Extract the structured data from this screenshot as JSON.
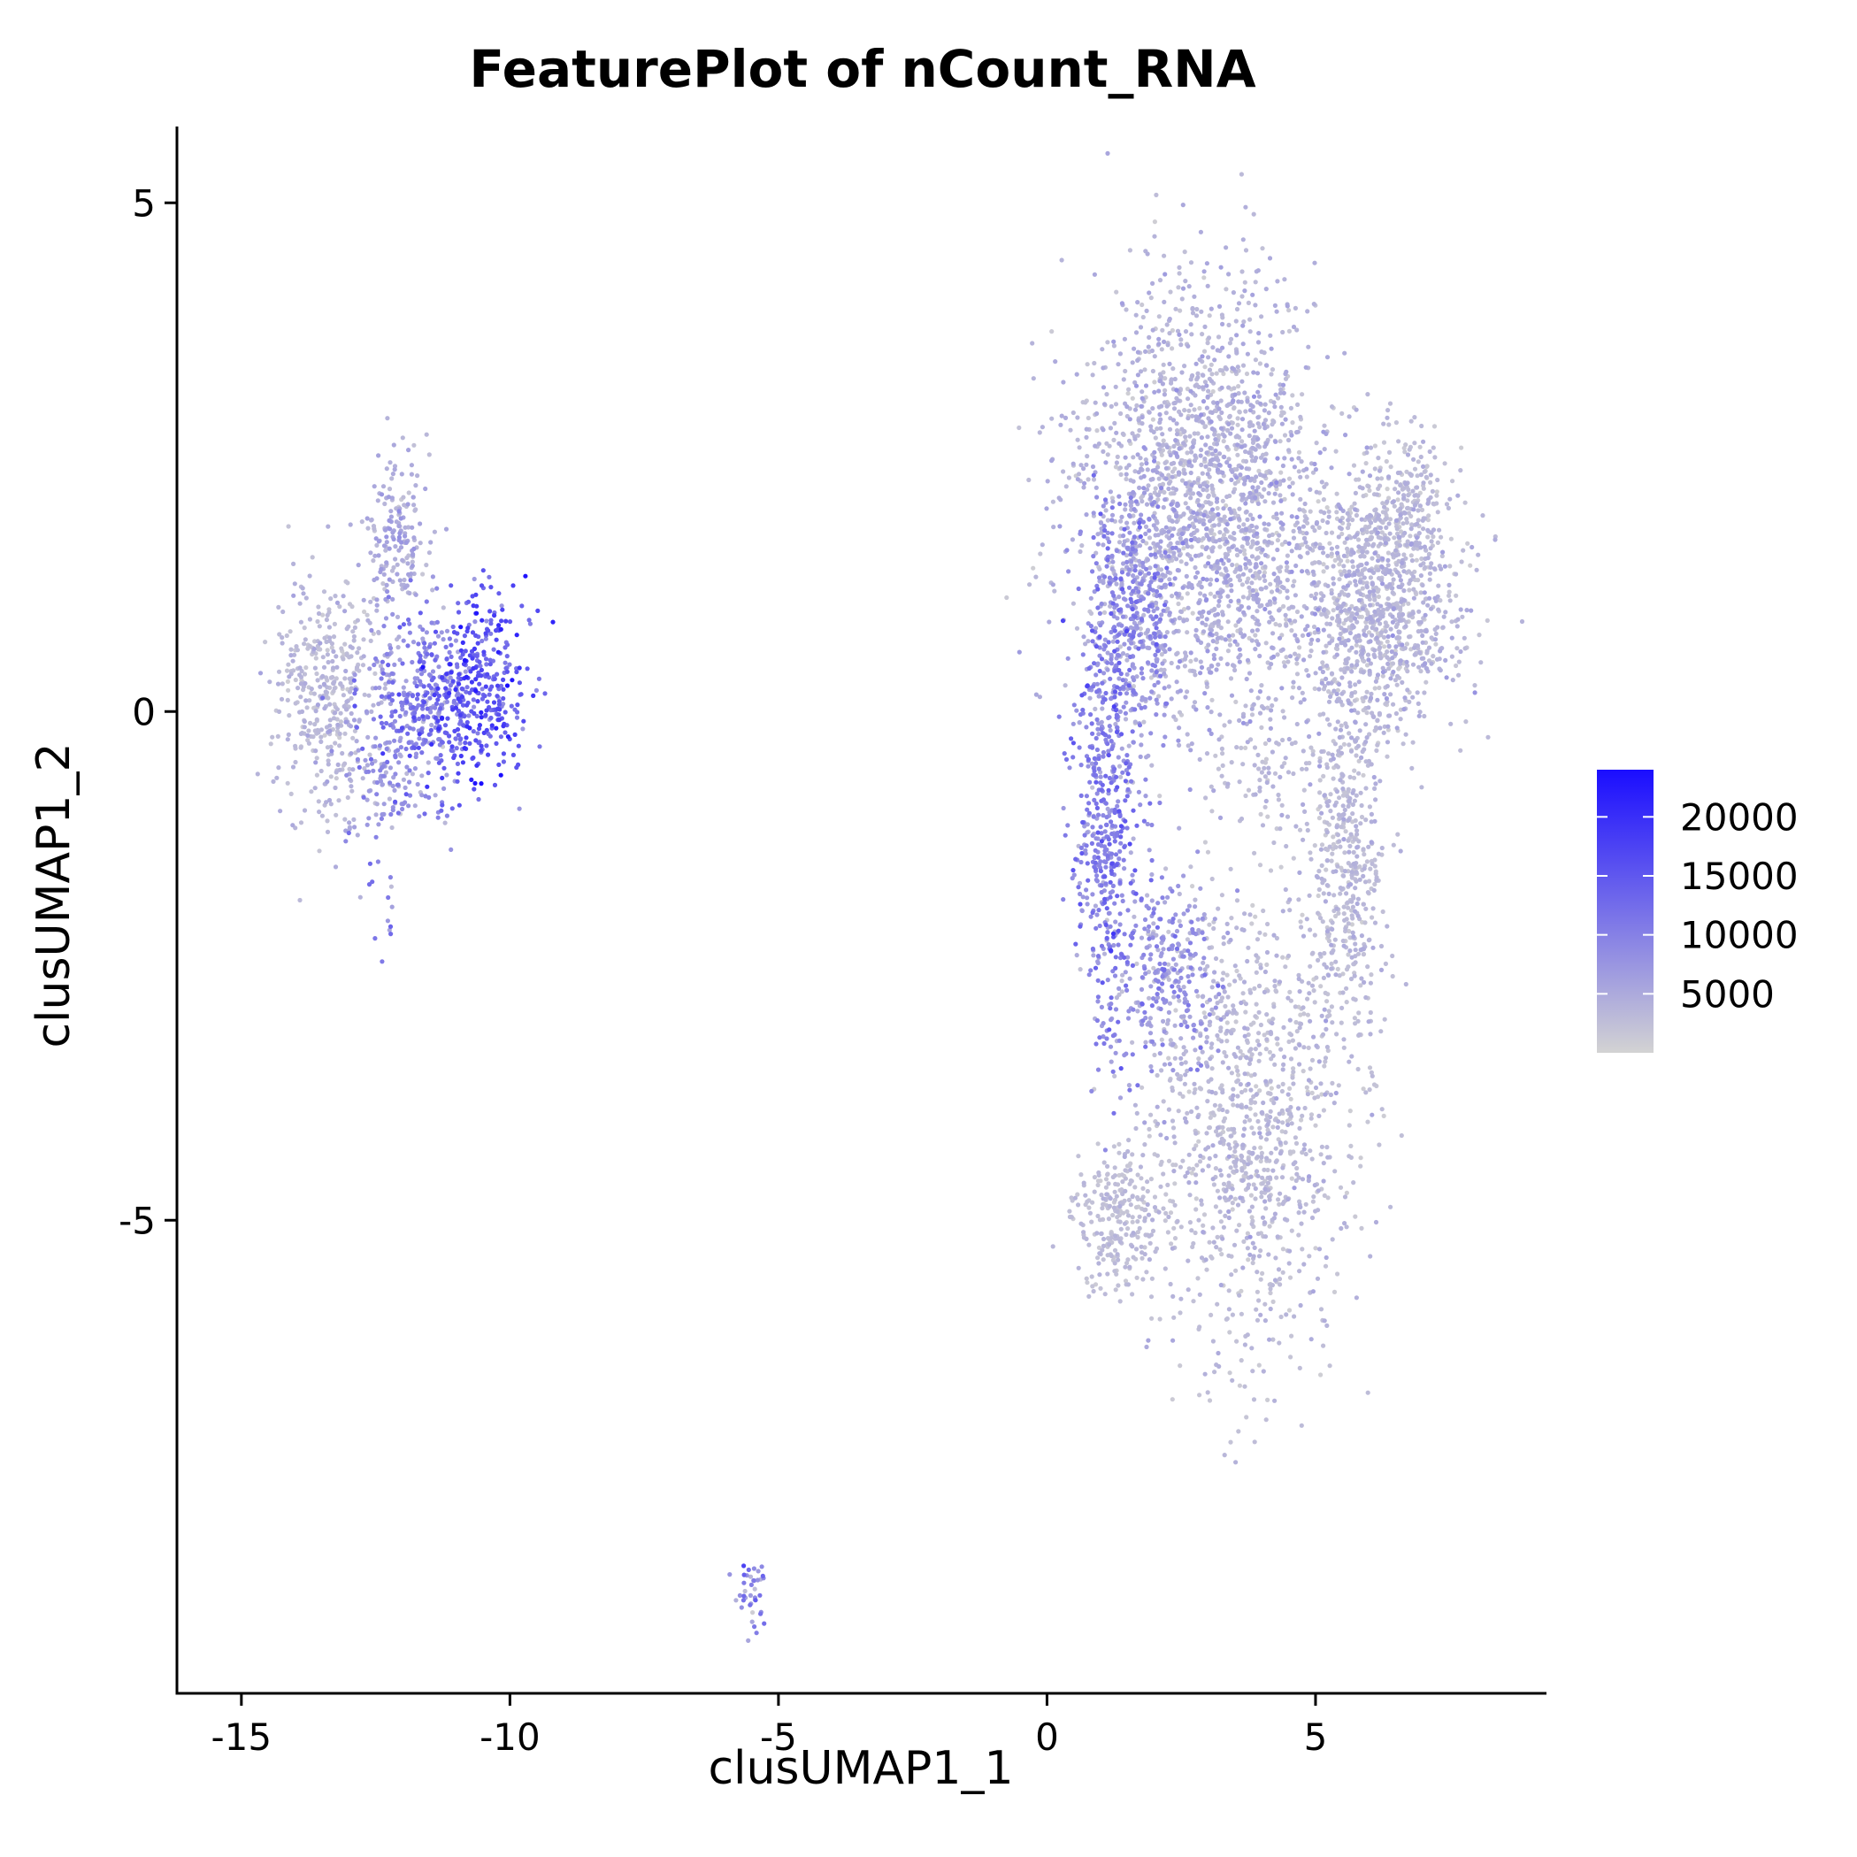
{
  "chart_data": {
    "type": "scatter",
    "title": "FeaturePlot of nCount_RNA",
    "xlabel": "clusUMAP1_1",
    "ylabel": "clusUMAP1_2",
    "xlim": [
      -16.2,
      9.3
    ],
    "ylim": [
      -9.65,
      5.75
    ],
    "xticks": [
      -15,
      -10,
      -5,
      0,
      5
    ],
    "xtick_labels": [
      "-15",
      "-10",
      "-5",
      "0",
      "5"
    ],
    "yticks": [
      5,
      0,
      -5
    ],
    "ytick_labels": [
      "5",
      "0",
      "-5"
    ],
    "grid": false,
    "legend_position": "right",
    "colorbar": {
      "min": 0,
      "max": 24000,
      "ticks": [
        20000,
        15000,
        10000,
        5000
      ],
      "tick_labels": [
        "20000",
        "15000",
        "10000",
        "5000"
      ],
      "low_color": "#d3d3d3",
      "high_color": "#1a0dff"
    },
    "clusters": [
      {
        "name": "",
        "cx": 3.8,
        "cy": -4.0,
        "sx": 1.1,
        "sy": 1.4,
        "n": 1100,
        "mean": 2800,
        "spread": 1200
      },
      {
        "name": "",
        "cx": 1.3,
        "cy": -5.0,
        "sx": 0.5,
        "sy": 0.4,
        "n": 250,
        "mean": 2500,
        "spread": 800
      },
      {
        "name": "",
        "cx": 2.8,
        "cy": 2.6,
        "sx": 1.3,
        "sy": 1.0,
        "n": 1200,
        "mean": 3500,
        "spread": 1400
      },
      {
        "name": "",
        "cx": 3.2,
        "cy": 1.3,
        "sx": 1.5,
        "sy": 0.9,
        "n": 900,
        "mean": 4200,
        "spread": 1600
      },
      {
        "name": "",
        "cx": 6.2,
        "cy": 1.0,
        "sx": 0.9,
        "sy": 0.7,
        "n": 900,
        "mean": 3200,
        "spread": 1300
      },
      {
        "name": "",
        "cx": 6.6,
        "cy": 2.0,
        "sx": 0.5,
        "sy": 0.4,
        "n": 250,
        "mean": 2800,
        "spread": 1000
      },
      {
        "name": "",
        "cx": 5.6,
        "cy": -1.5,
        "sx": 0.45,
        "sy": 1.1,
        "n": 500,
        "mean": 3000,
        "spread": 1100
      },
      {
        "name": "",
        "cx": 1.1,
        "cy": -1.0,
        "sx": 0.35,
        "sy": 1.3,
        "n": 500,
        "mean": 10000,
        "spread": 3000
      },
      {
        "name": "",
        "cx": 1.6,
        "cy": 0.9,
        "sx": 0.5,
        "sy": 0.8,
        "n": 400,
        "mean": 8000,
        "spread": 2500
      },
      {
        "name": "",
        "cx": 2.1,
        "cy": -2.6,
        "sx": 0.6,
        "sy": 0.6,
        "n": 300,
        "mean": 7000,
        "spread": 2500
      },
      {
        "name": "",
        "cx": 4.0,
        "cy": -0.5,
        "sx": 0.6,
        "sy": 0.4,
        "n": 80,
        "mean": 3000,
        "spread": 1000
      },
      {
        "name": "",
        "cx": -13.4,
        "cy": 0.2,
        "sx": 0.55,
        "sy": 0.65,
        "n": 400,
        "mean": 3000,
        "spread": 1200
      },
      {
        "name": "",
        "cx": -10.6,
        "cy": 0.2,
        "sx": 0.55,
        "sy": 0.55,
        "n": 350,
        "mean": 15000,
        "spread": 3500
      },
      {
        "name": "",
        "cx": -11.7,
        "cy": 0.1,
        "sx": 0.6,
        "sy": 0.55,
        "n": 350,
        "mean": 9500,
        "spread": 3000
      },
      {
        "name": "",
        "cx": -12.1,
        "cy": 1.7,
        "sx": 0.4,
        "sy": 0.45,
        "n": 180,
        "mean": 4500,
        "spread": 1500
      },
      {
        "name": "",
        "cx": -12.4,
        "cy": -0.6,
        "sx": 0.5,
        "sy": 0.3,
        "n": 100,
        "mean": 7000,
        "spread": 2500
      },
      {
        "name": "",
        "cx": -12.3,
        "cy": -2.0,
        "sx": 0.15,
        "sy": 0.35,
        "n": 14,
        "mean": 9000,
        "spread": 3000
      },
      {
        "name": "",
        "cx": -13.0,
        "cy": -1.2,
        "sx": 0.1,
        "sy": 0.1,
        "n": 5,
        "mean": 6000,
        "spread": 2000
      },
      {
        "name": "",
        "cx": -5.5,
        "cy": -8.6,
        "sx": 0.18,
        "sy": 0.25,
        "n": 40,
        "mean": 9000,
        "spread": 4000
      }
    ]
  }
}
